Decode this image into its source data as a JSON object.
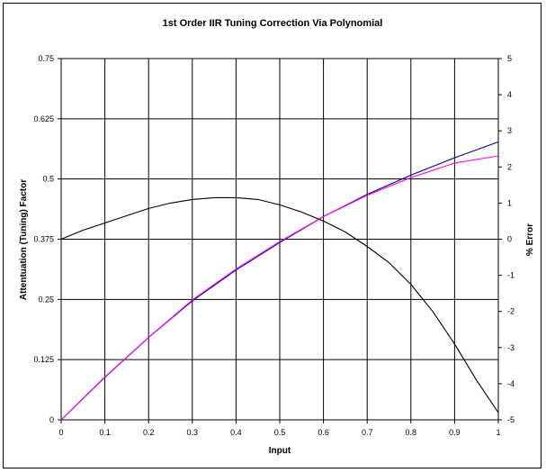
{
  "chart_data": {
    "type": "line",
    "title": "1st Order IIR Tuning Correction Via Polynomial",
    "xlabel": "Input",
    "ylabel": "Attentuation (Tuning) Factor",
    "y2label": "% Error",
    "xlim": [
      0,
      1
    ],
    "ylim": [
      0,
      0.75
    ],
    "y2lim": [
      -5,
      5
    ],
    "x_ticks": [
      "0",
      "0.1",
      "0.2",
      "0.3",
      "0.4",
      "0.5",
      "0.6",
      "0.7",
      "0.8",
      "0.9",
      "1"
    ],
    "y_ticks": [
      "0",
      "0.125",
      "0.25",
      "0.375",
      "0.5",
      "0.625",
      "0.75"
    ],
    "y2_ticks": [
      "-5",
      "-4",
      "-3",
      "-2",
      "-1",
      "0",
      "1",
      "2",
      "3",
      "4",
      "5"
    ],
    "grid": true,
    "legend": "none",
    "x": [
      0,
      0.1,
      0.2,
      0.3,
      0.4,
      0.5,
      0.6,
      0.7,
      0.8,
      0.9,
      1.0
    ],
    "series": [
      {
        "axis": "left",
        "color": "#000080",
        "values": [
          0,
          0.088,
          0.171,
          0.247,
          0.311,
          0.368,
          0.422,
          0.468,
          0.508,
          0.544,
          0.577
        ]
      },
      {
        "axis": "left",
        "color": "#ff00ff",
        "values": [
          0,
          0.089,
          0.171,
          0.249,
          0.313,
          0.37,
          0.422,
          0.466,
          0.503,
          0.533,
          0.548
        ]
      },
      {
        "axis": "right",
        "color": "#000000",
        "x": [
          0,
          0.05,
          0.1,
          0.15,
          0.2,
          0.25,
          0.3,
          0.35,
          0.4,
          0.45,
          0.5,
          0.55,
          0.6,
          0.65,
          0.7,
          0.75,
          0.8,
          0.85,
          0.9,
          0.95,
          1.0
        ],
        "values": [
          0.0,
          0.25,
          0.45,
          0.65,
          0.85,
          1.0,
          1.1,
          1.15,
          1.15,
          1.1,
          0.95,
          0.75,
          0.5,
          0.2,
          -0.2,
          -0.65,
          -1.25,
          -2.0,
          -2.9,
          -3.9,
          -4.8
        ]
      }
    ]
  }
}
